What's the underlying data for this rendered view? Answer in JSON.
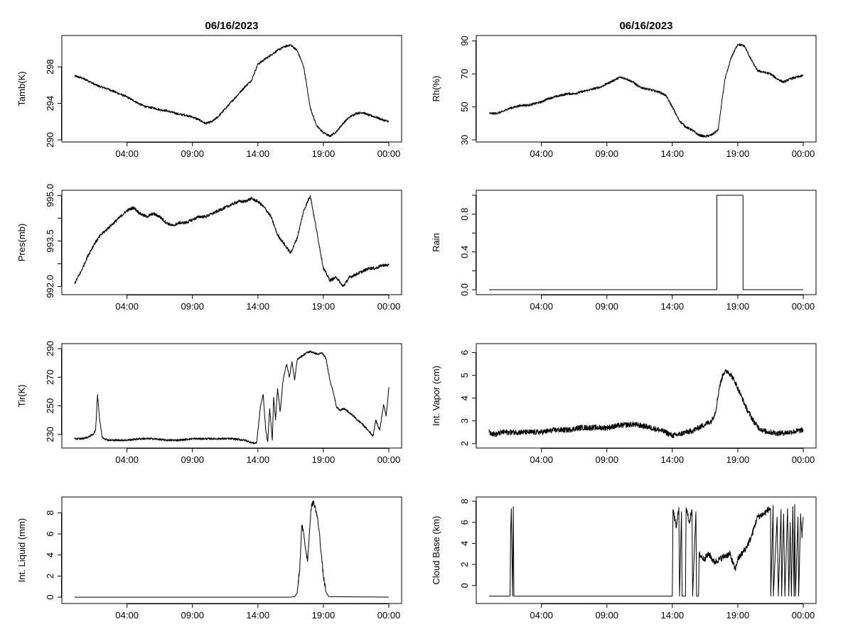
{
  "chart_data": [
    {
      "type": "line",
      "title": "06/16/2023",
      "ylabel": "Tamb(K)",
      "xlim": [
        0,
        24
      ],
      "ylim": [
        290,
        301.2
      ],
      "xticks": [
        4,
        9,
        14,
        19,
        24
      ],
      "xtick_labels": [
        "04:00",
        "09:00",
        "14:00",
        "19:00",
        "00:00"
      ],
      "yticks": [
        290,
        294,
        298
      ],
      "ytick_labels": [
        "290",
        "294",
        "298"
      ],
      "noise": 0.12,
      "series": [
        {
          "name": "Tamb",
          "x": [
            0,
            0.5,
            1,
            1.5,
            2,
            2.5,
            3,
            3.5,
            4,
            4.5,
            5,
            5.5,
            6,
            6.5,
            7,
            7.5,
            8,
            8.5,
            9,
            9.5,
            10,
            10.5,
            11,
            11.5,
            12,
            12.5,
            13,
            13.5,
            14,
            14.5,
            15,
            15.5,
            16,
            16.5,
            17,
            17.5,
            18,
            18.5,
            19,
            19.5,
            20,
            20.5,
            21,
            21.5,
            22,
            22.5,
            23,
            23.5,
            24
          ],
          "y": [
            297.0,
            296.8,
            296.5,
            296.1,
            295.8,
            295.6,
            295.3,
            295.0,
            294.7,
            294.3,
            293.9,
            293.6,
            293.5,
            293.3,
            293.2,
            293.0,
            292.8,
            292.7,
            292.5,
            292.2,
            291.8,
            292.0,
            292.6,
            293.4,
            294.2,
            295.0,
            295.8,
            296.5,
            298.3,
            298.8,
            299.3,
            299.8,
            300.2,
            300.4,
            299.8,
            298.0,
            293.5,
            291.5,
            290.8,
            290.4,
            290.9,
            291.8,
            292.5,
            292.9,
            293.0,
            292.7,
            292.5,
            292.2,
            292.0
          ]
        }
      ]
    },
    {
      "type": "line",
      "title": "06/16/2023",
      "ylabel": "Rh(%)",
      "xlim": [
        0,
        24
      ],
      "ylim": [
        30,
        92
      ],
      "xticks": [
        4,
        9,
        14,
        19,
        24
      ],
      "xtick_labels": [
        "04:00",
        "09:00",
        "14:00",
        "19:00",
        "00:00"
      ],
      "yticks": [
        30,
        50,
        70,
        90
      ],
      "ytick_labels": [
        "30",
        "50",
        "70",
        "90"
      ],
      "noise": 0.7,
      "series": [
        {
          "name": "Rh",
          "x": [
            0,
            0.5,
            1,
            1.5,
            2,
            2.5,
            3,
            3.5,
            4,
            4.5,
            5,
            5.5,
            6,
            6.5,
            7,
            7.5,
            8,
            8.5,
            9,
            9.5,
            10,
            10.5,
            11,
            11.5,
            12,
            12.5,
            13,
            13.5,
            14,
            14.5,
            15,
            15.5,
            16,
            16.5,
            17,
            17.5,
            18,
            18.5,
            19,
            19.5,
            20,
            20.5,
            21,
            21.5,
            22,
            22.5,
            23,
            23.5,
            24
          ],
          "y": [
            46,
            46,
            47,
            49,
            50,
            51,
            51,
            52,
            53,
            55,
            56,
            57,
            58,
            58,
            59,
            60,
            61,
            62,
            64,
            66,
            68,
            67,
            65,
            62,
            61,
            60,
            59,
            57,
            50,
            42,
            38,
            36,
            33,
            32,
            33,
            36,
            66,
            80,
            88,
            87,
            79,
            72,
            71,
            70,
            67,
            65,
            67,
            68,
            69
          ]
        }
      ]
    },
    {
      "type": "line",
      "ylabel": "Pres(mb)",
      "xlim": [
        0,
        24
      ],
      "ylim": [
        991.8,
        995.1
      ],
      "xticks": [
        4,
        9,
        14,
        19,
        24
      ],
      "xtick_labels": [
        "04:00",
        "09:00",
        "14:00",
        "19:00",
        "00:00"
      ],
      "yticks": [
        992.0,
        993.5,
        995.0
      ],
      "ytick_labels": [
        "992.0",
        "993.5",
        "995.0"
      ],
      "minor_yticks": [
        992.75,
        994.25
      ],
      "noise": 0.05,
      "series": [
        {
          "name": "Pres",
          "x": [
            0,
            0.5,
            1,
            1.5,
            2,
            2.5,
            3,
            3.5,
            4,
            4.5,
            5,
            5.5,
            6,
            6.5,
            7,
            7.5,
            8,
            8.5,
            9,
            9.5,
            10,
            10.5,
            11,
            11.5,
            12,
            12.5,
            13,
            13.5,
            14,
            14.5,
            15,
            15.5,
            16,
            16.5,
            17,
            17.5,
            18,
            18.5,
            19,
            19.5,
            20,
            20.5,
            21,
            21.5,
            22,
            22.5,
            23,
            23.5,
            24
          ],
          "y": [
            992.1,
            992.5,
            993.0,
            993.4,
            993.7,
            993.9,
            994.1,
            994.3,
            994.5,
            994.6,
            994.4,
            994.3,
            994.4,
            994.3,
            994.1,
            994.0,
            994.1,
            994.1,
            994.2,
            994.3,
            994.3,
            994.4,
            994.5,
            994.6,
            994.7,
            994.8,
            994.8,
            994.9,
            994.8,
            994.6,
            994.3,
            993.7,
            993.4,
            993.1,
            993.6,
            994.5,
            995.0,
            993.8,
            992.6,
            992.2,
            992.3,
            992.0,
            992.3,
            992.4,
            992.5,
            992.6,
            992.6,
            992.7,
            992.7
          ]
        }
      ]
    },
    {
      "type": "line",
      "ylabel": "Rain",
      "xlim": [
        0,
        24
      ],
      "ylim": [
        -0.03,
        1.03
      ],
      "xticks": [
        4,
        9,
        14,
        19,
        24
      ],
      "xtick_labels": [
        "04:00",
        "09:00",
        "14:00",
        "19:00",
        "00:00"
      ],
      "yticks": [
        0.0,
        0.4,
        0.8
      ],
      "ytick_labels": [
        "0.0",
        "0.4",
        "0.8"
      ],
      "minor_yticks": [
        0.2,
        0.6,
        1.0
      ],
      "noise": 0,
      "series": [
        {
          "name": "Rain",
          "x": [
            0,
            17.4,
            17.4,
            19.4,
            19.4,
            24
          ],
          "y": [
            0,
            0,
            1,
            1,
            0,
            0
          ]
        }
      ]
    },
    {
      "type": "line",
      "ylabel": "Tir(K)",
      "xlim": [
        0,
        24
      ],
      "ylim": [
        222,
        292
      ],
      "xticks": [
        4,
        9,
        14,
        19,
        24
      ],
      "xtick_labels": [
        "04:00",
        "09:00",
        "14:00",
        "19:00",
        "00:00"
      ],
      "yticks": [
        230,
        250,
        270,
        290
      ],
      "ytick_labels": [
        "230",
        "250",
        "270",
        "290"
      ],
      "noise": 0.7,
      "series": [
        {
          "name": "Tir",
          "x": [
            0,
            0.5,
            1,
            1.4,
            1.6,
            1.75,
            1.9,
            2.0,
            2.1,
            2.3,
            2.6,
            3,
            3.5,
            4,
            5,
            6,
            7,
            8,
            9,
            10,
            11,
            12,
            13,
            13.6,
            13.9,
            14.2,
            14.4,
            14.6,
            14.75,
            14.9,
            15.1,
            15.2,
            15.35,
            15.5,
            15.7,
            15.9,
            16.0,
            16.2,
            16.4,
            16.6,
            16.8,
            17.0,
            17.2,
            17.4,
            17.7,
            18,
            18.3,
            18.6,
            18.9,
            19.2,
            19.5,
            19.8,
            20,
            20.3,
            20.6,
            21,
            21.3,
            21.6,
            21.9,
            22.2,
            22.5,
            22.8,
            23,
            23.3,
            23.6,
            23.8,
            24
          ],
          "y": [
            227,
            227,
            228,
            230,
            233,
            258,
            241,
            235,
            228,
            227,
            226,
            226,
            226,
            226,
            227,
            227,
            226,
            226,
            227,
            227,
            227,
            227,
            226,
            224,
            224,
            250,
            258,
            233,
            225,
            248,
            226,
            256,
            240,
            262,
            246,
            266,
            272,
            279,
            270,
            281,
            268,
            282,
            284,
            285,
            287,
            288,
            287,
            286,
            287,
            283,
            268,
            258,
            249,
            247,
            248,
            245,
            243,
            240,
            238,
            235,
            232,
            229,
            240,
            233,
            251,
            243,
            263
          ]
        }
      ]
    },
    {
      "type": "line",
      "ylabel": "Int. Vapor (cm)",
      "xlim": [
        0,
        24
      ],
      "ylim": [
        1.9,
        6.3
      ],
      "xticks": [
        4,
        9,
        14,
        19,
        24
      ],
      "xtick_labels": [
        "04:00",
        "09:00",
        "14:00",
        "19:00",
        "00:00"
      ],
      "yticks": [
        2,
        3,
        4,
        5,
        6
      ],
      "ytick_labels": [
        "2",
        "3",
        "4",
        "5",
        "6"
      ],
      "noise": 0.12,
      "series": [
        {
          "name": "Int. Vapor",
          "x": [
            0,
            0.5,
            1,
            1.5,
            2,
            3,
            4,
            5,
            6,
            7,
            8,
            9,
            10,
            11,
            12,
            13,
            13.5,
            14,
            14.5,
            15,
            15.5,
            16,
            16.5,
            17,
            17.3,
            17.6,
            17.9,
            18.2,
            18.5,
            18.8,
            19.1,
            19.4,
            19.7,
            20,
            20.3,
            20.6,
            21,
            22,
            23,
            24
          ],
          "y": [
            2.5,
            2.4,
            2.5,
            2.5,
            2.5,
            2.5,
            2.5,
            2.6,
            2.6,
            2.7,
            2.7,
            2.7,
            2.8,
            2.85,
            2.75,
            2.6,
            2.5,
            2.35,
            2.4,
            2.5,
            2.55,
            2.7,
            2.85,
            3.0,
            3.4,
            4.5,
            5.1,
            5.2,
            5.0,
            4.7,
            4.3,
            3.9,
            3.5,
            3.2,
            2.9,
            2.7,
            2.55,
            2.45,
            2.5,
            2.6
          ]
        }
      ]
    },
    {
      "type": "line",
      "ylabel": "Int. Liquid (mm)",
      "xlim": [
        0,
        24
      ],
      "ylim": [
        -0.4,
        9.3
      ],
      "xticks": [
        4,
        9,
        14,
        19,
        24
      ],
      "xtick_labels": [
        "04:00",
        "09:00",
        "14:00",
        "19:00",
        "00:00"
      ],
      "yticks": [
        0,
        2,
        4,
        6,
        8
      ],
      "ytick_labels": [
        "0",
        "2",
        "4",
        "6",
        "8"
      ],
      "noise": 0.25,
      "noise_min": 0.3,
      "series": [
        {
          "name": "Int. Liquid",
          "x": [
            0,
            16.5,
            16.8,
            17.0,
            17.2,
            17.35,
            17.5,
            17.65,
            17.8,
            17.95,
            18.1,
            18.25,
            18.4,
            18.55,
            18.7,
            18.85,
            19.0,
            19.2,
            19.4,
            24
          ],
          "y": [
            0,
            0,
            0.05,
            0.4,
            2.8,
            6.8,
            6.0,
            4.5,
            3.5,
            6.5,
            8.8,
            9.0,
            8.4,
            7.5,
            6.0,
            4.0,
            2.0,
            0.5,
            0.05,
            0
          ]
        }
      ]
    },
    {
      "type": "line",
      "ylabel": "Cloud Base (km)",
      "xlim": [
        0,
        24
      ],
      "ylim": [
        -1.5,
        8.2
      ],
      "xticks": [
        4,
        9,
        14,
        19,
        24
      ],
      "xtick_labels": [
        "04:00",
        "09:00",
        "14:00",
        "19:00",
        "00:00"
      ],
      "yticks": [
        0,
        2,
        4,
        6,
        8
      ],
      "ytick_labels": [
        "0",
        "2",
        "4",
        "6",
        "8"
      ],
      "noise": 0.3,
      "noise_min": -0.5,
      "series": [
        {
          "name": "Cloud Base",
          "x": [
            0,
            1.6,
            1.65,
            1.7,
            1.8,
            1.85,
            1.9,
            1.95,
            2.0,
            14.0,
            14.05,
            14.3,
            14.5,
            14.55,
            14.7,
            14.75,
            15.0,
            15.05,
            15.3,
            15.5,
            15.55,
            15.8,
            15.85,
            16.0,
            16.05,
            16.4,
            16.8,
            17.2,
            17.6,
            18.0,
            18.4,
            18.8,
            19.0,
            19.3,
            19.6,
            20.0,
            20.5,
            21.0,
            21.3,
            21.5,
            21.52,
            21.7,
            21.72,
            22.0,
            22.1,
            22.3,
            22.35,
            22.5,
            22.6,
            22.8,
            22.9,
            23.0,
            23.1,
            23.2,
            23.3,
            23.35,
            23.4,
            23.6,
            23.65,
            23.8,
            23.9,
            24
          ],
          "y": [
            -1,
            -1,
            5.0,
            7.3,
            -1,
            7.5,
            -1,
            -1,
            -1,
            -1,
            7.2,
            5.5,
            7.4,
            -1,
            7.0,
            -1,
            -1,
            7.4,
            6.0,
            7.1,
            -1,
            7.0,
            -1,
            -1,
            3.0,
            2.5,
            3.0,
            2.2,
            2.5,
            2.8,
            3.0,
            1.5,
            2.5,
            3.0,
            3.5,
            4.5,
            6.5,
            6.8,
            7.2,
            7.3,
            -1,
            7.6,
            -1,
            6.5,
            -1,
            7.2,
            -1,
            6.8,
            -1,
            7.3,
            -1,
            6.0,
            -1,
            7.5,
            -1,
            7.7,
            -1,
            6.5,
            -1,
            6.8,
            4.5,
            6.5
          ]
        }
      ]
    }
  ]
}
